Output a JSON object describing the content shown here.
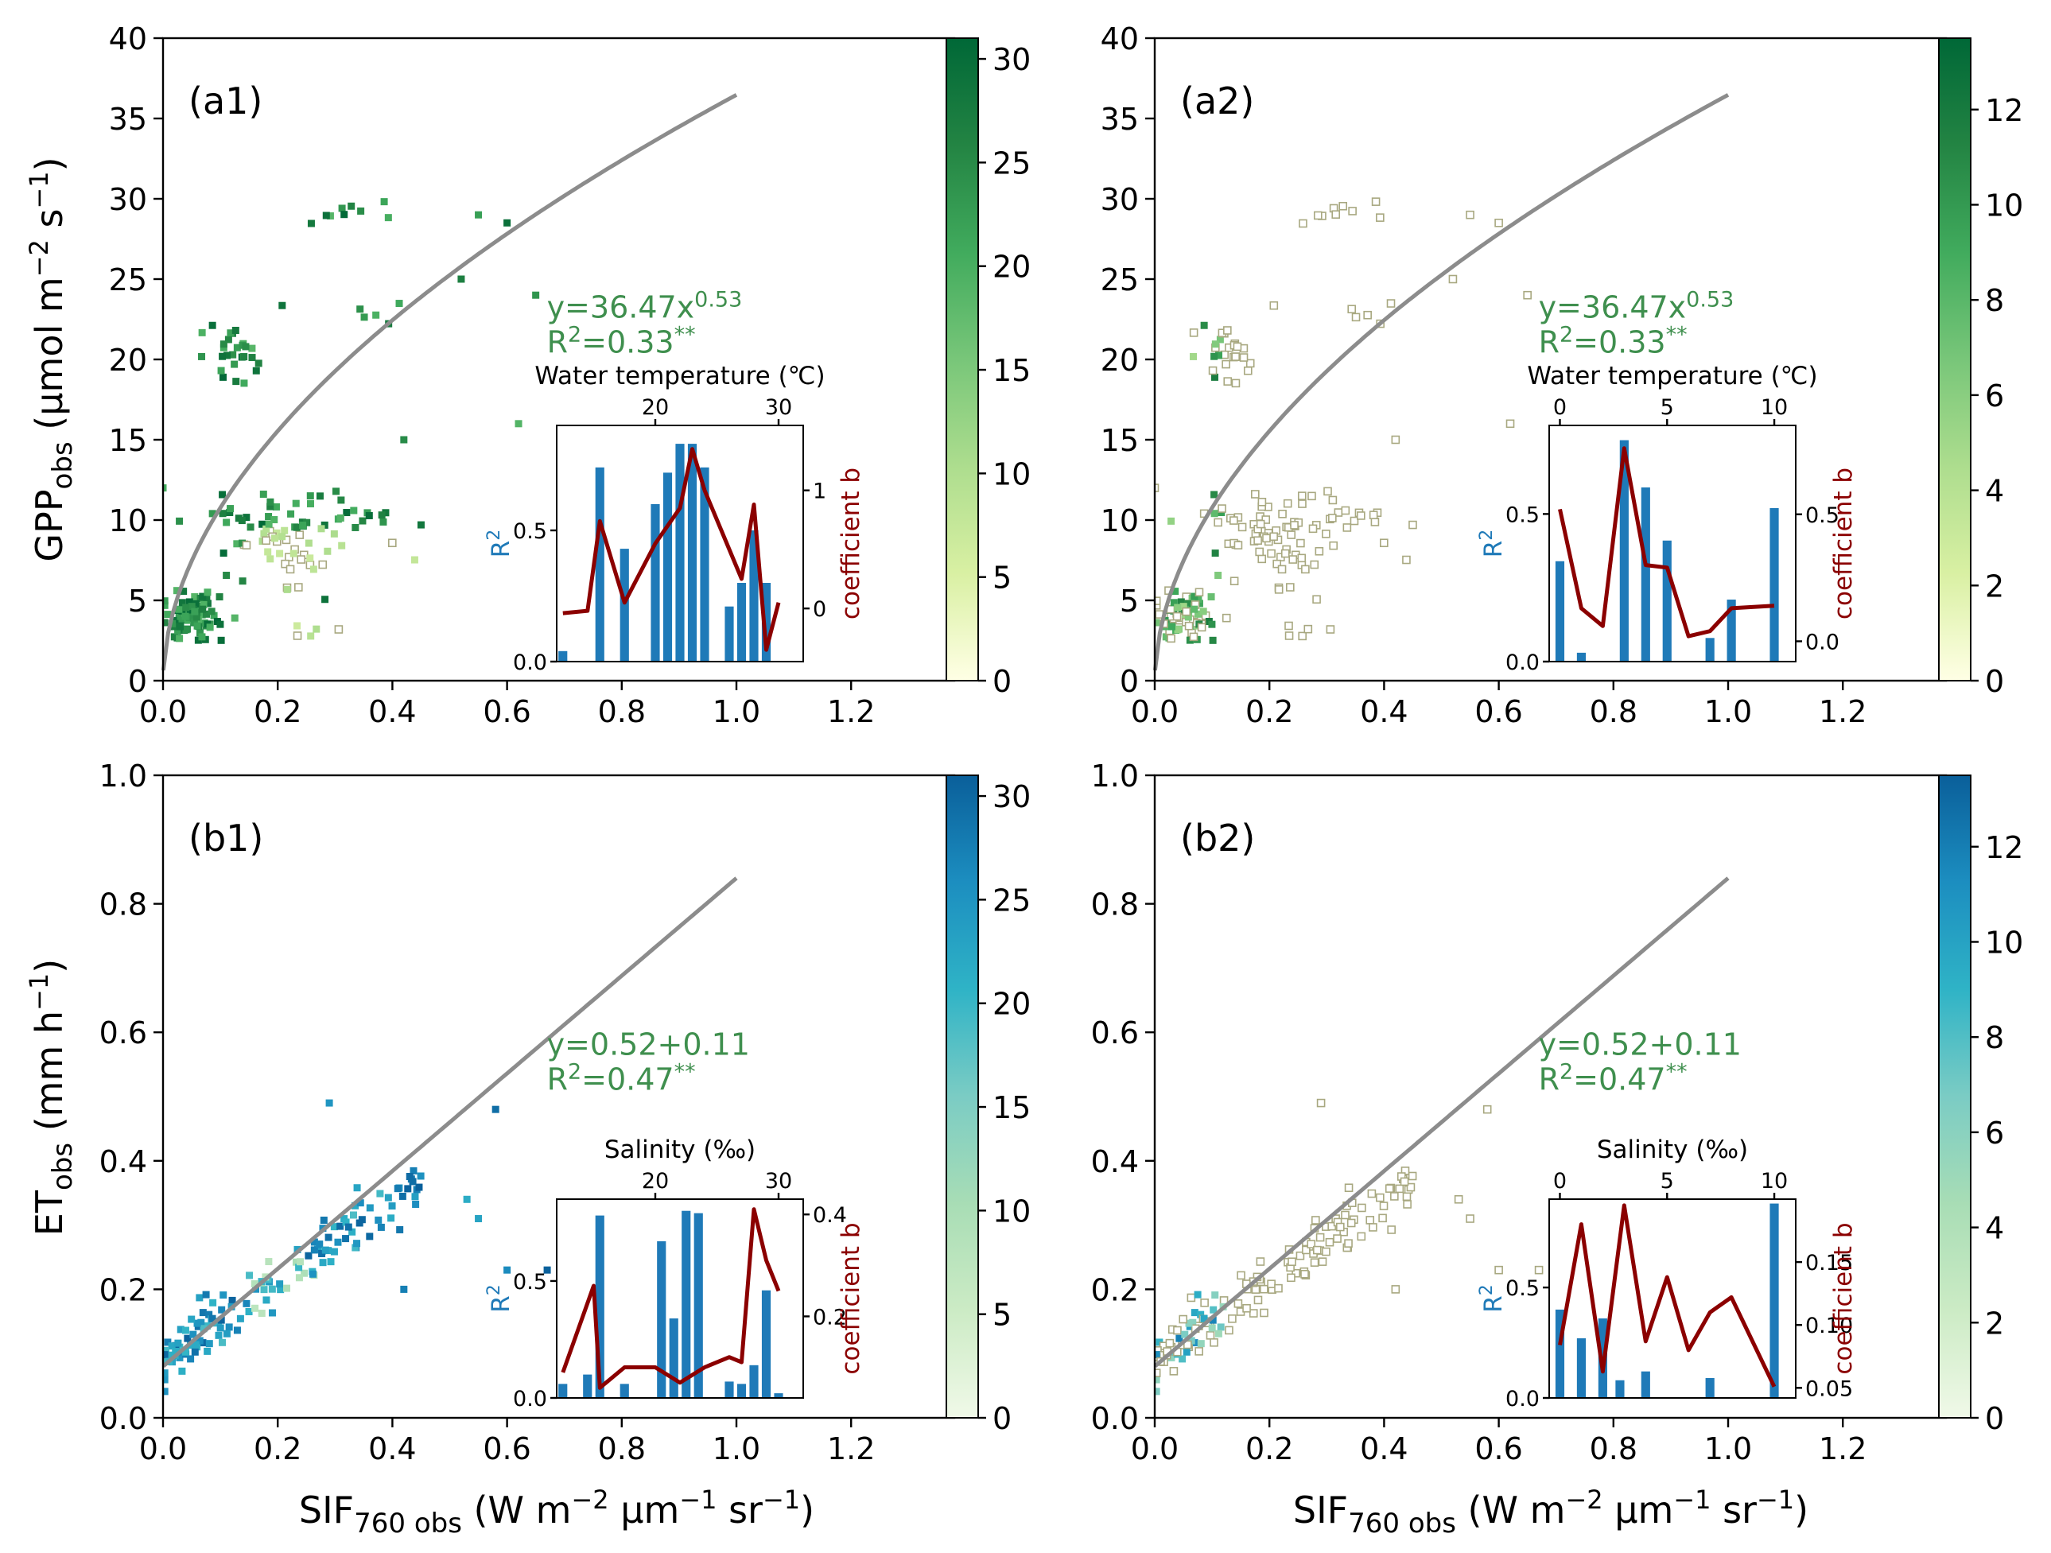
{
  "figure": {
    "x_axis_label": "SIF760 obs (W m−2 μm−1 sr−1)",
    "x_axis_label_parts": {
      "base": "SIF",
      "sub": "760 obs",
      "units_a": " (W m",
      "exp1": "−2",
      "units_b": " μm",
      "exp2": "−1",
      "units_c": " sr",
      "exp3": "−1",
      "units_d": ")"
    },
    "y_label_gpp_parts": {
      "base": "GPP",
      "sub": "obs",
      "units_a": " (μmol m",
      "exp1": "−2",
      "units_b": " s",
      "exp2": "−1",
      "units_c": ")"
    },
    "y_label_et_parts": {
      "base": "ET",
      "sub": "obs",
      "units_a": " (mm h",
      "exp1": "−1",
      "units_b": ")"
    },
    "colors": {
      "curve": "#8c8c8c",
      "equation": "#3f8f4e",
      "bar": "#1f7ab8",
      "line": "#8b0000",
      "r2_label": "#1f7ab8",
      "coef_label": "#8b0000"
    }
  },
  "chart_data": [
    {
      "id": "a1",
      "type": "scatter",
      "panel_label": "(a1)",
      "xlim": [
        0,
        1.38
      ],
      "ylim": [
        0,
        40
      ],
      "xticks": [
        0.0,
        0.2,
        0.4,
        0.6,
        0.8,
        1.0,
        1.2
      ],
      "xtick_labels": [
        "0.0",
        "0.2",
        "0.4",
        "0.6",
        "0.8",
        "1.0",
        "1.2"
      ],
      "yticks": [
        0,
        5,
        10,
        15,
        20,
        25,
        30,
        35,
        40
      ],
      "ytick_labels": [
        "0",
        "5",
        "10",
        "15",
        "20",
        "25",
        "30",
        "35",
        "40"
      ],
      "fit": {
        "type": "power",
        "a": 36.47,
        "b": 0.53,
        "x_max": 1.0
      },
      "equation": {
        "base": "y=36.47x",
        "sup": "0.53",
        "r2_base": "R",
        "r2_sup": "2",
        "r2_val": "=0.33",
        "stars": "**"
      },
      "colorbar": {
        "min": 0,
        "max": 31,
        "ticks": [
          0,
          5,
          10,
          15,
          20,
          25,
          30
        ],
        "tick_labels": [
          "0",
          "5",
          "10",
          "15",
          "20",
          "25",
          "30"
        ],
        "colormap": "green"
      },
      "color_mode": "high",
      "inset": {
        "title": "Water temperature (℃)",
        "ylabel_base": "R",
        "ylabel_sup": "2",
        "y2label": "coefficient b",
        "xlim": [
          12,
          32
        ],
        "ylim": [
          0,
          0.9
        ],
        "y2lim": [
          -0.45,
          1.55
        ],
        "xticks": [
          20,
          30
        ],
        "xtick_labels": [
          "20",
          "30"
        ],
        "yticks": [
          0.0,
          0.5
        ],
        "ytick_labels": [
          "0.0",
          "0.5"
        ],
        "y2ticks": [
          0,
          1
        ],
        "y2tick_labels": [
          "0",
          "1"
        ],
        "bars": [
          {
            "x": 12.5,
            "r2": 0.04
          },
          {
            "x": 15.5,
            "r2": 0.74
          },
          {
            "x": 17.5,
            "r2": 0.43
          },
          {
            "x": 20.0,
            "r2": 0.6
          },
          {
            "x": 21.0,
            "r2": 0.72
          },
          {
            "x": 22.0,
            "r2": 0.83
          },
          {
            "x": 23.0,
            "r2": 0.83
          },
          {
            "x": 24.0,
            "r2": 0.74
          },
          {
            "x": 26.0,
            "r2": 0.21
          },
          {
            "x": 27.0,
            "r2": 0.3
          },
          {
            "x": 28.0,
            "r2": 0.5
          },
          {
            "x": 29.0,
            "r2": 0.3
          }
        ],
        "line": [
          {
            "x": 12.5,
            "b": -0.04
          },
          {
            "x": 14.5,
            "b": -0.02
          },
          {
            "x": 15.5,
            "b": 0.74
          },
          {
            "x": 17.5,
            "b": 0.05
          },
          {
            "x": 20.0,
            "b": 0.55
          },
          {
            "x": 21.0,
            "b": 0.7
          },
          {
            "x": 22.0,
            "b": 0.85
          },
          {
            "x": 23.0,
            "b": 1.35
          },
          {
            "x": 24.0,
            "b": 1.0
          },
          {
            "x": 26.0,
            "b": 0.5
          },
          {
            "x": 27.0,
            "b": 0.25
          },
          {
            "x": 28.0,
            "b": 0.88
          },
          {
            "x": 29.0,
            "b": -0.35
          },
          {
            "x": 30.0,
            "b": 0.05
          }
        ]
      }
    },
    {
      "id": "a2",
      "type": "scatter",
      "panel_label": "(a2)",
      "xlim": [
        0,
        1.38
      ],
      "ylim": [
        0,
        40
      ],
      "xticks": [
        0.0,
        0.2,
        0.4,
        0.6,
        0.8,
        1.0,
        1.2
      ],
      "xtick_labels": [
        "0.0",
        "0.2",
        "0.4",
        "0.6",
        "0.8",
        "1.0",
        "1.2"
      ],
      "yticks": [
        0,
        5,
        10,
        15,
        20,
        25,
        30,
        35,
        40
      ],
      "ytick_labels": [
        "0",
        "5",
        "10",
        "15",
        "20",
        "25",
        "30",
        "35",
        "40"
      ],
      "fit": {
        "type": "power",
        "a": 36.47,
        "b": 0.53,
        "x_max": 1.0
      },
      "equation": {
        "base": "y=36.47x",
        "sup": "0.53",
        "r2_base": "R",
        "r2_sup": "2",
        "r2_val": "=0.33",
        "stars": "**"
      },
      "colorbar": {
        "min": 0,
        "max": 13.5,
        "ticks": [
          0,
          2,
          4,
          6,
          8,
          10,
          12
        ],
        "tick_labels": [
          "0",
          "2",
          "4",
          "6",
          "8",
          "10",
          "12"
        ],
        "colormap": "green"
      },
      "color_mode": "low",
      "inset": {
        "title": "Water temperature (℃)",
        "ylabel_base": "R",
        "ylabel_sup": "2",
        "y2label": "coefficient b",
        "xlim": [
          -0.5,
          11
        ],
        "ylim": [
          0,
          0.8
        ],
        "y2lim": [
          -0.08,
          0.85
        ],
        "xticks": [
          0,
          5,
          10
        ],
        "xtick_labels": [
          "0",
          "5",
          "10"
        ],
        "yticks": [
          0.0,
          0.5
        ],
        "ytick_labels": [
          "0.0",
          "0.5"
        ],
        "y2ticks": [
          0.0,
          0.5
        ],
        "y2tick_labels": [
          "0.0",
          "0.5"
        ],
        "bars": [
          {
            "x": 0,
            "r2": 0.34
          },
          {
            "x": 1,
            "r2": 0.03
          },
          {
            "x": 3,
            "r2": 0.75
          },
          {
            "x": 4,
            "r2": 0.59
          },
          {
            "x": 5,
            "r2": 0.41
          },
          {
            "x": 7,
            "r2": 0.08
          },
          {
            "x": 8,
            "r2": 0.21
          },
          {
            "x": 10,
            "r2": 0.52
          }
        ],
        "line": [
          {
            "x": 0,
            "b": 0.52
          },
          {
            "x": 1,
            "b": 0.13
          },
          {
            "x": 2,
            "b": 0.06
          },
          {
            "x": 3,
            "b": 0.76
          },
          {
            "x": 4,
            "b": 0.3
          },
          {
            "x": 5,
            "b": 0.29
          },
          {
            "x": 6,
            "b": 0.02
          },
          {
            "x": 7,
            "b": 0.04
          },
          {
            "x": 8,
            "b": 0.13
          },
          {
            "x": 10,
            "b": 0.14
          }
        ]
      }
    },
    {
      "id": "b1",
      "type": "scatter",
      "panel_label": "(b1)",
      "xlim": [
        0,
        1.38
      ],
      "ylim": [
        0,
        1.0
      ],
      "xticks": [
        0.0,
        0.2,
        0.4,
        0.6,
        0.8,
        1.0,
        1.2
      ],
      "xtick_labels": [
        "0.0",
        "0.2",
        "0.4",
        "0.6",
        "0.8",
        "1.0",
        "1.2"
      ],
      "yticks": [
        0.0,
        0.2,
        0.4,
        0.6,
        0.8,
        1.0
      ],
      "ytick_labels": [
        "0.0",
        "0.2",
        "0.4",
        "0.6",
        "0.8",
        "1.0"
      ],
      "fit": {
        "type": "power",
        "a": 0.76,
        "b": 1.0,
        "intercept": 0.08,
        "x_max": 1.0
      },
      "equation": {
        "base": "y=0.52+0.11",
        "sup": "",
        "r2_base": "R",
        "r2_sup": "2",
        "r2_val": "=0.47",
        "stars": "**"
      },
      "colorbar": {
        "min": 0,
        "max": 31,
        "ticks": [
          0,
          5,
          10,
          15,
          20,
          25,
          30
        ],
        "tick_labels": [
          "0",
          "5",
          "10",
          "15",
          "20",
          "25",
          "30"
        ],
        "colormap": "blue"
      },
      "color_mode": "high",
      "inset": {
        "title": "Salinity (‰)",
        "ylabel_base": "R",
        "ylabel_sup": "2",
        "y2label": "coefficient b",
        "xlim": [
          12,
          32
        ],
        "ylim": [
          0,
          0.85
        ],
        "y2lim": [
          0.04,
          0.43
        ],
        "xticks": [
          20,
          30
        ],
        "xtick_labels": [
          "20",
          "30"
        ],
        "yticks": [
          0.0,
          0.5
        ],
        "ytick_labels": [
          "0.0",
          "0.5"
        ],
        "y2ticks": [
          0.2,
          0.4
        ],
        "y2tick_labels": [
          "0.2",
          "0.4"
        ],
        "bars": [
          {
            "x": 12.5,
            "r2": 0.06
          },
          {
            "x": 14.5,
            "r2": 0.1
          },
          {
            "x": 15.5,
            "r2": 0.78
          },
          {
            "x": 17.5,
            "r2": 0.06
          },
          {
            "x": 20.5,
            "r2": 0.67
          },
          {
            "x": 21.5,
            "r2": 0.34
          },
          {
            "x": 22.5,
            "r2": 0.8
          },
          {
            "x": 23.5,
            "r2": 0.79
          },
          {
            "x": 26.0,
            "r2": 0.07
          },
          {
            "x": 27.0,
            "r2": 0.06
          },
          {
            "x": 28.0,
            "r2": 0.14
          },
          {
            "x": 29.0,
            "r2": 0.46
          },
          {
            "x": 30.0,
            "r2": 0.02
          }
        ],
        "line": [
          {
            "x": 12.5,
            "b": 0.09
          },
          {
            "x": 15.0,
            "b": 0.26
          },
          {
            "x": 15.5,
            "b": 0.06
          },
          {
            "x": 17.5,
            "b": 0.1
          },
          {
            "x": 20.0,
            "b": 0.1
          },
          {
            "x": 22.0,
            "b": 0.07
          },
          {
            "x": 24.0,
            "b": 0.1
          },
          {
            "x": 26.0,
            "b": 0.12
          },
          {
            "x": 27.0,
            "b": 0.11
          },
          {
            "x": 28.0,
            "b": 0.41
          },
          {
            "x": 29.0,
            "b": 0.31
          },
          {
            "x": 30.0,
            "b": 0.25
          }
        ]
      }
    },
    {
      "id": "b2",
      "type": "scatter",
      "panel_label": "(b2)",
      "xlim": [
        0,
        1.38
      ],
      "ylim": [
        0,
        1.0
      ],
      "xticks": [
        0.0,
        0.2,
        0.4,
        0.6,
        0.8,
        1.0,
        1.2
      ],
      "xtick_labels": [
        "0.0",
        "0.2",
        "0.4",
        "0.6",
        "0.8",
        "1.0",
        "1.2"
      ],
      "yticks": [
        0.0,
        0.2,
        0.4,
        0.6,
        0.8,
        1.0
      ],
      "ytick_labels": [
        "0.0",
        "0.2",
        "0.4",
        "0.6",
        "0.8",
        "1.0"
      ],
      "fit": {
        "type": "power",
        "a": 0.76,
        "b": 1.0,
        "intercept": 0.08,
        "x_max": 1.0
      },
      "equation": {
        "base": "y=0.52+0.11",
        "sup": "",
        "r2_base": "R",
        "r2_sup": "2",
        "r2_val": "=0.47",
        "stars": "**"
      },
      "colorbar": {
        "min": 0,
        "max": 13.5,
        "ticks": [
          0,
          2,
          4,
          6,
          8,
          10,
          12
        ],
        "tick_labels": [
          "0",
          "2",
          "4",
          "6",
          "8",
          "10",
          "12"
        ],
        "colormap": "blue"
      },
      "color_mode": "low",
      "inset": {
        "title": "Salinity (‰)",
        "ylabel_base": "R",
        "ylabel_sup": "2",
        "y2label": "coefficient b",
        "xlim": [
          -0.5,
          11
        ],
        "ylim": [
          0,
          0.9
        ],
        "y2lim": [
          0.042,
          0.2
        ],
        "xticks": [
          0,
          5,
          10
        ],
        "xtick_labels": [
          "0",
          "5",
          "10"
        ],
        "yticks": [
          0.0,
          0.5
        ],
        "ytick_labels": [
          "0.0",
          "0.5"
        ],
        "y2ticks": [
          0.05,
          0.1,
          0.15
        ],
        "y2tick_labels": [
          "0.05",
          "0.10",
          "0.15"
        ],
        "bars": [
          {
            "x": 0,
            "r2": 0.4
          },
          {
            "x": 1,
            "r2": 0.27
          },
          {
            "x": 2,
            "r2": 0.36
          },
          {
            "x": 2.8,
            "r2": 0.08
          },
          {
            "x": 4,
            "r2": 0.12
          },
          {
            "x": 7,
            "r2": 0.09
          },
          {
            "x": 10,
            "r2": 0.88
          }
        ],
        "line": [
          {
            "x": 0,
            "b": 0.084
          },
          {
            "x": 1,
            "b": 0.18
          },
          {
            "x": 2,
            "b": 0.063
          },
          {
            "x": 3,
            "b": 0.195
          },
          {
            "x": 4,
            "b": 0.087
          },
          {
            "x": 5,
            "b": 0.138
          },
          {
            "x": 6,
            "b": 0.08
          },
          {
            "x": 7,
            "b": 0.11
          },
          {
            "x": 8,
            "b": 0.122
          },
          {
            "x": 10,
            "b": 0.051
          }
        ]
      }
    }
  ]
}
